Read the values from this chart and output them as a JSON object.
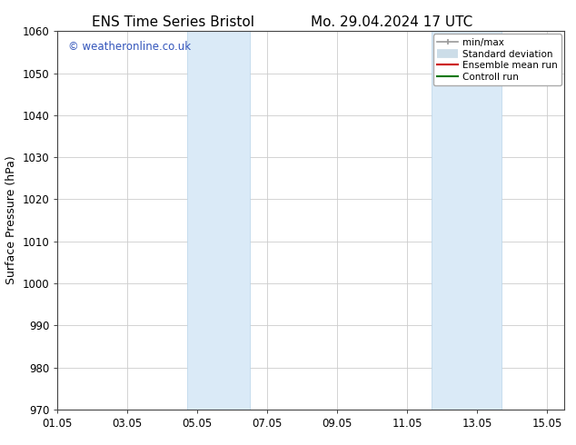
{
  "title_left": "ENS Time Series Bristol",
  "title_right": "Mo. 29.04.2024 17 UTC",
  "ylabel": "Surface Pressure (hPa)",
  "ylim": [
    970,
    1060
  ],
  "yticks": [
    970,
    980,
    990,
    1000,
    1010,
    1020,
    1030,
    1040,
    1050,
    1060
  ],
  "xtick_labels": [
    "01.05",
    "03.05",
    "05.05",
    "07.05",
    "09.05",
    "11.05",
    "13.05",
    "15.05"
  ],
  "xtick_positions_days": [
    0,
    2,
    4,
    6,
    8,
    10,
    12,
    14
  ],
  "xlim": [
    0,
    14.5
  ],
  "shaded_bands": [
    {
      "x_start_days": 3.7,
      "x_end_days": 5.5
    },
    {
      "x_start_days": 10.7,
      "x_end_days": 12.7
    }
  ],
  "shade_color": "#daeaf7",
  "shade_line_color": "#b8d4ea",
  "watermark_text": "© weatheronline.co.uk",
  "watermark_color": "#3355bb",
  "legend_labels": [
    "min/max",
    "Standard deviation",
    "Ensemble mean run",
    "Controll run"
  ],
  "legend_colors": [
    "#999999",
    "#ccdde8",
    "#cc0000",
    "#007700"
  ],
  "bg_color": "#ffffff",
  "grid_color": "#cccccc",
  "spine_color": "#444444",
  "title_fontsize": 11,
  "axis_fontsize": 9,
  "tick_fontsize": 8.5
}
